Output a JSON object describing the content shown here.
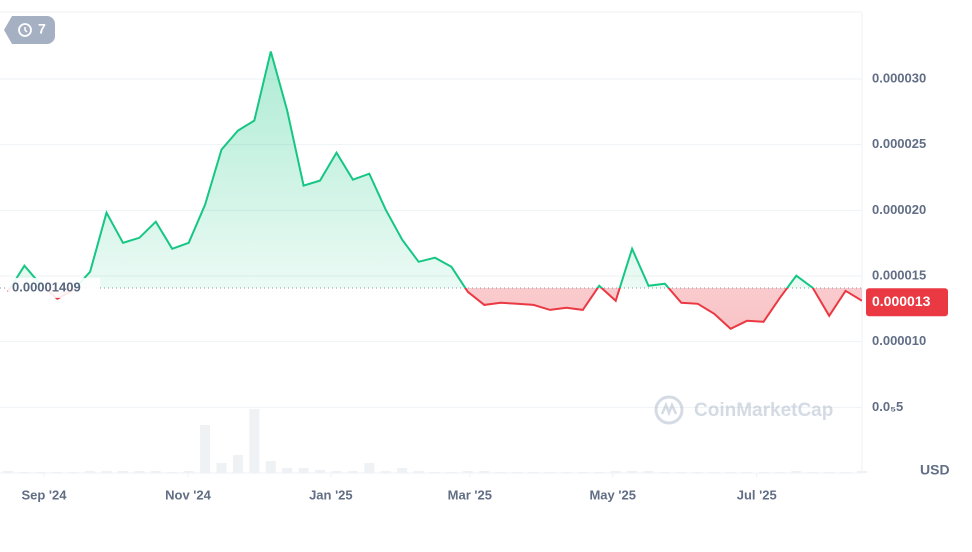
{
  "chart_data": {
    "type": "line",
    "badge": "7",
    "watermark": "CoinMarketCap",
    "currency": "USD",
    "baseline": 1.409e-05,
    "current_price": 1.3e-05,
    "up_color": "#16c784",
    "down_color": "#ea3943",
    "xlim": [
      0,
      52
    ],
    "xticks": [
      {
        "value": 2.19,
        "label": "Sep '24"
      },
      {
        "value": 10.96,
        "label": "Nov '24"
      },
      {
        "value": 19.66,
        "label": "Jan '25"
      },
      {
        "value": 28.12,
        "label": "Mar '25"
      },
      {
        "value": 36.82,
        "label": "May '25"
      },
      {
        "value": 45.59,
        "label": "Jul '25"
      }
    ],
    "ylim": [
      0,
      3.51e-05
    ],
    "yticks": [
      {
        "value": 5e-06,
        "label": "0.0₅5"
      },
      {
        "value": 1e-05,
        "label": "0.000010"
      },
      {
        "value": 1.5e-05,
        "label": "0.000015"
      },
      {
        "value": 2e-05,
        "label": "0.000020"
      },
      {
        "value": 2.5e-05,
        "label": "0.000025"
      },
      {
        "value": 3e-05,
        "label": "0.000030"
      }
    ],
    "grid": true,
    "values": [
      1.38e-05,
      1.578e-05,
      1.433e-05,
      1.326e-05,
      1.395e-05,
      1.532e-05,
      1.982e-05,
      1.753e-05,
      1.791e-05,
      1.913e-05,
      1.707e-05,
      1.753e-05,
      2.043e-05,
      2.462e-05,
      2.607e-05,
      2.683e-05,
      3.209e-05,
      2.759e-05,
      2.188e-05,
      2.226e-05,
      2.439e-05,
      2.233e-05,
      2.279e-05,
      2.005e-05,
      1.776e-05,
      1.608e-05,
      1.639e-05,
      1.57e-05,
      1.38e-05,
      1.28e-05,
      1.296e-05,
      1.288e-05,
      1.28e-05,
      1.242e-05,
      1.258e-05,
      1.242e-05,
      1.425e-05,
      1.311e-05,
      1.707e-05,
      1.425e-05,
      1.441e-05,
      1.296e-05,
      1.288e-05,
      1.212e-05,
      1.098e-05,
      1.159e-05,
      1.151e-05,
      1.334e-05,
      1.502e-05,
      1.41e-05,
      1.197e-05,
      1.387e-05,
      1.311e-05
    ],
    "volume": [
      2,
      1,
      1,
      1,
      1,
      2,
      2,
      2,
      2,
      2,
      1,
      2,
      48,
      10,
      18,
      64,
      12,
      5,
      5,
      3,
      2,
      2,
      10,
      2,
      5,
      2,
      1,
      1,
      2,
      2,
      1,
      1,
      1,
      1,
      1,
      1,
      1,
      2,
      2,
      2,
      1,
      1,
      1,
      1,
      1,
      1,
      1,
      1,
      2,
      1,
      1,
      1,
      2
    ]
  }
}
